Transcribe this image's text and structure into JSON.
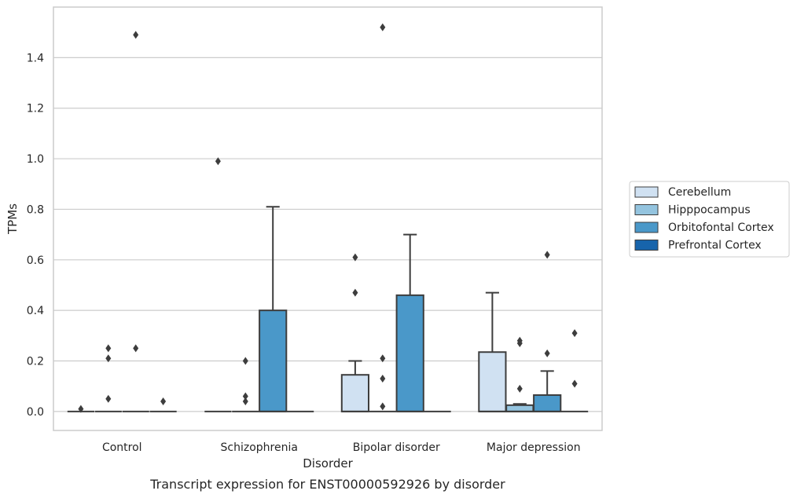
{
  "chart_data": {
    "type": "boxplot",
    "caption": "Transcript expression for ENST00000592926 by disorder",
    "xlabel": "Disorder",
    "ylabel": "TPMs",
    "ylim": [
      -0.075,
      1.6
    ],
    "yticks": [
      "0.0",
      "0.2",
      "0.4",
      "0.6",
      "0.8",
      "1.0",
      "1.2",
      "1.4"
    ],
    "grid": "horizontal",
    "legend_position": "right",
    "categories": [
      "Control",
      "Schizophrenia",
      "Bipolar disorder",
      "Major depression"
    ],
    "series": [
      {
        "name": "Cerebellum",
        "color": "#d0e1f2"
      },
      {
        "name": "Hipppocampus",
        "color": "#94c4df"
      },
      {
        "name": "Orbitofontal Cortex",
        "color": "#4a98c9"
      },
      {
        "name": "Prefrontal Cortex",
        "color": "#1764ab"
      }
    ],
    "boxes": [
      {
        "category": 0,
        "series": 0,
        "q1": 0,
        "median": 0,
        "q3": 0,
        "whisker_low": 0,
        "whisker_high": 0,
        "outliers": [
          0.01
        ]
      },
      {
        "category": 0,
        "series": 1,
        "q1": 0,
        "median": 0,
        "q3": 0,
        "whisker_low": 0,
        "whisker_high": 0,
        "outliers": [
          0.05,
          0.21,
          0.25
        ]
      },
      {
        "category": 0,
        "series": 2,
        "q1": 0,
        "median": 0,
        "q3": 0,
        "whisker_low": 0,
        "whisker_high": 0,
        "outliers": [
          0.25,
          1.49
        ]
      },
      {
        "category": 0,
        "series": 3,
        "q1": 0,
        "median": 0,
        "q3": 0,
        "whisker_low": 0,
        "whisker_high": 0,
        "outliers": [
          0.04
        ]
      },
      {
        "category": 1,
        "series": 0,
        "q1": 0,
        "median": 0,
        "q3": 0,
        "whisker_low": 0,
        "whisker_high": 0,
        "outliers": [
          0.99
        ]
      },
      {
        "category": 1,
        "series": 1,
        "q1": 0,
        "median": 0,
        "q3": 0,
        "whisker_low": 0,
        "whisker_high": 0,
        "outliers": [
          0.04,
          0.06,
          0.2
        ]
      },
      {
        "category": 1,
        "series": 2,
        "q1": 0,
        "median": 0,
        "q3": 0.4,
        "whisker_low": 0,
        "whisker_high": 0.81,
        "outliers": []
      },
      {
        "category": 1,
        "series": 3,
        "q1": 0,
        "median": 0,
        "q3": 0,
        "whisker_low": 0,
        "whisker_high": 0,
        "outliers": []
      },
      {
        "category": 2,
        "series": 0,
        "q1": 0,
        "median": 0,
        "q3": 0.145,
        "whisker_low": 0,
        "whisker_high": 0.2,
        "outliers": [
          0.47,
          0.61
        ]
      },
      {
        "category": 2,
        "series": 1,
        "q1": 0,
        "median": 0,
        "q3": 0,
        "whisker_low": 0,
        "whisker_high": 0,
        "outliers": [
          0.02,
          0.13,
          0.21,
          1.52
        ]
      },
      {
        "category": 2,
        "series": 2,
        "q1": 0,
        "median": 0,
        "q3": 0.46,
        "whisker_low": 0,
        "whisker_high": 0.7,
        "outliers": []
      },
      {
        "category": 2,
        "series": 3,
        "q1": 0,
        "median": 0,
        "q3": 0,
        "whisker_low": 0,
        "whisker_high": 0,
        "outliers": []
      },
      {
        "category": 3,
        "series": 0,
        "q1": 0,
        "median": 0,
        "q3": 0.235,
        "whisker_low": 0,
        "whisker_high": 0.47,
        "outliers": []
      },
      {
        "category": 3,
        "series": 1,
        "q1": 0,
        "median": 0,
        "q3": 0.025,
        "whisker_low": 0,
        "whisker_high": 0.03,
        "outliers": [
          0.09,
          0.27,
          0.28
        ]
      },
      {
        "category": 3,
        "series": 2,
        "q1": 0,
        "median": 0,
        "q3": 0.065,
        "whisker_low": 0,
        "whisker_high": 0.16,
        "outliers": [
          0.23,
          0.62
        ]
      },
      {
        "category": 3,
        "series": 3,
        "q1": 0,
        "median": 0,
        "q3": 0,
        "whisker_low": 0,
        "whisker_high": 0,
        "outliers": [
          0.11,
          0.31
        ]
      }
    ]
  }
}
